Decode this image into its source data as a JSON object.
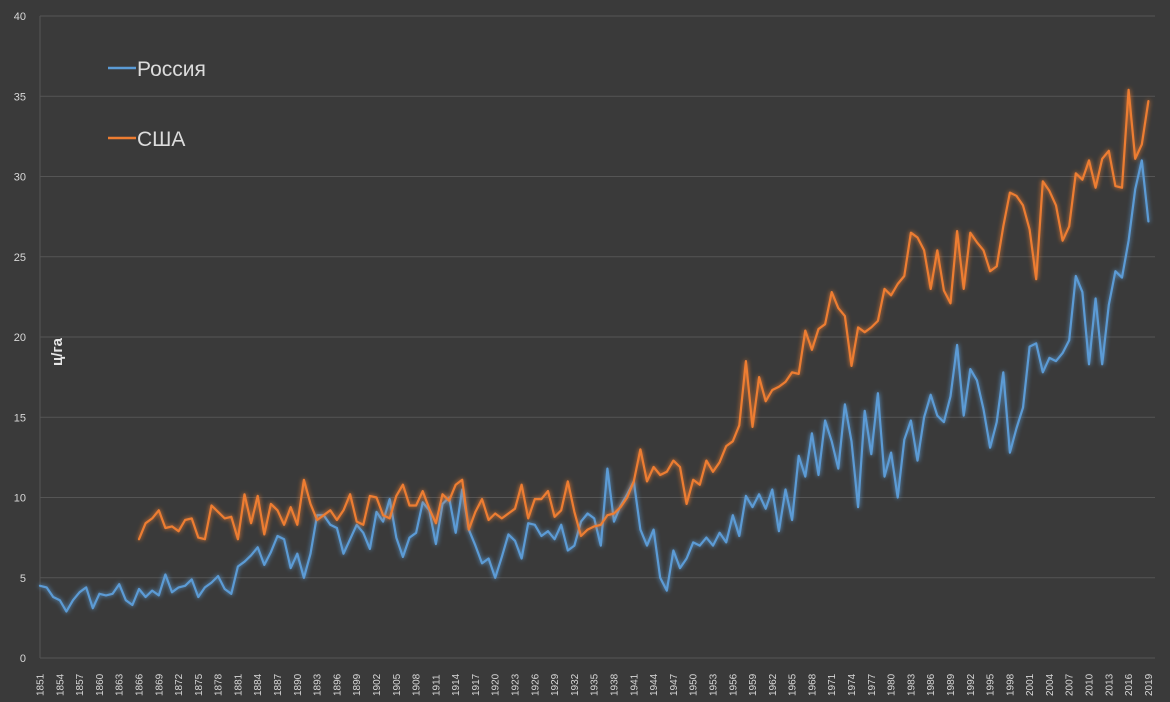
{
  "chart_data": {
    "type": "line",
    "ylabel": "ц/га",
    "xlabel": "",
    "title": "",
    "ylim": [
      0,
      40
    ],
    "yticks": [
      0,
      5,
      10,
      15,
      20,
      25,
      30,
      35,
      40
    ],
    "x_start": 1851,
    "x_end": 2020,
    "xtick_labels": [
      "1851",
      "1854",
      "1857",
      "1860",
      "1863",
      "1866",
      "1869",
      "1872",
      "1875",
      "1878",
      "1881",
      "1884",
      "1887",
      "1890",
      "1893",
      "1896",
      "1899",
      "1902",
      "1905",
      "1908",
      "1911",
      "1914",
      "1917",
      "1920",
      "1923",
      "1926",
      "1929",
      "1932",
      "1935",
      "1938",
      "1941",
      "1944",
      "1947",
      "1950",
      "1953",
      "1956",
      "1959",
      "1962",
      "1965",
      "1968",
      "1971",
      "1974",
      "1977",
      "1980",
      "1983",
      "1986",
      "1989",
      "1992",
      "1995",
      "1998",
      "2001",
      "2004",
      "2007",
      "2010",
      "2013",
      "2016",
      "2019"
    ],
    "grid": true,
    "legend_position": "top-left",
    "series": [
      {
        "name": "Россия",
        "color": "#5b9bd5",
        "start_year": 1851,
        "values": [
          4.5,
          4.4,
          3.8,
          3.6,
          2.9,
          3.6,
          4.1,
          4.4,
          3.1,
          4.0,
          3.9,
          4.0,
          4.6,
          3.6,
          3.3,
          4.3,
          3.8,
          4.2,
          3.9,
          5.2,
          4.1,
          4.4,
          4.5,
          4.9,
          3.8,
          4.4,
          4.7,
          5.1,
          4.3,
          4.0,
          5.7,
          6.0,
          6.4,
          6.9,
          5.8,
          6.6,
          7.6,
          7.4,
          5.6,
          6.5,
          5.0,
          6.5,
          8.9,
          8.9,
          8.3,
          8.1,
          6.5,
          7.4,
          8.3,
          7.8,
          6.8,
          9.1,
          8.5,
          9.9,
          7.5,
          6.3,
          7.5,
          7.8,
          9.7,
          9.2,
          7.1,
          9.6,
          10.0,
          7.8,
          10.5,
          8.0,
          7.0,
          5.9,
          6.2,
          5.0,
          6.3,
          7.7,
          7.3,
          6.2,
          8.4,
          8.3,
          7.6,
          7.9,
          7.4,
          8.3,
          6.7,
          7.0,
          8.5,
          9.0,
          8.7,
          7.0,
          11.8,
          8.5,
          9.5,
          10.2,
          11.0,
          8.0,
          7.0,
          8.0,
          5.0,
          4.2,
          6.7,
          5.6,
          6.2,
          7.2,
          7.0,
          7.5,
          7.0,
          7.8,
          7.2,
          8.9,
          7.6,
          10.1,
          9.4,
          10.2,
          9.3,
          10.5,
          7.9,
          10.5,
          8.6,
          12.6,
          11.3,
          14.0,
          11.4,
          14.8,
          13.5,
          11.8,
          15.8,
          13.5,
          9.4,
          15.4,
          12.7,
          16.5,
          11.3,
          12.8,
          10.0,
          13.6,
          14.8,
          12.3,
          15.0,
          16.4,
          15.1,
          14.7,
          16.3,
          19.5,
          15.1,
          18.0,
          17.3,
          15.5,
          13.1,
          14.7,
          17.8,
          12.8,
          14.3,
          15.6,
          19.4,
          19.6,
          17.8,
          18.7,
          18.5,
          19.0,
          19.8,
          23.8,
          22.8,
          18.3,
          22.4,
          18.3,
          22.0,
          24.1,
          23.7,
          26.0,
          29.2,
          31.0,
          27.2
        ]
      },
      {
        "name": "США",
        "color": "#ed7d31",
        "start_year": 1866,
        "values": [
          7.4,
          8.4,
          8.7,
          9.2,
          8.1,
          8.2,
          7.9,
          8.6,
          8.7,
          7.5,
          7.4,
          9.5,
          9.1,
          8.7,
          8.8,
          7.4,
          10.2,
          8.4,
          10.1,
          7.7,
          9.6,
          9.2,
          8.3,
          9.4,
          8.3,
          11.1,
          9.6,
          8.6,
          8.9,
          9.2,
          8.6,
          9.2,
          10.2,
          8.5,
          8.3,
          10.1,
          10.0,
          8.9,
          8.7,
          10.1,
          10.8,
          9.5,
          9.5,
          10.4,
          9.3,
          8.4,
          10.2,
          9.8,
          10.8,
          11.1,
          8.0,
          9.1,
          9.9,
          8.6,
          9.0,
          8.7,
          9.0,
          9.3,
          10.8,
          8.7,
          9.9,
          9.9,
          10.4,
          8.8,
          9.2,
          11.0,
          9.1,
          7.6,
          8.0,
          8.2,
          8.3,
          8.9,
          9.0,
          9.4,
          10.0,
          11.0,
          13.0,
          11.0,
          11.9,
          11.4,
          11.6,
          12.3,
          11.9,
          9.6,
          11.1,
          10.8,
          12.3,
          11.6,
          12.2,
          13.2,
          13.5,
          14.5,
          18.5,
          14.4,
          17.5,
          16.0,
          16.7,
          16.9,
          17.2,
          17.8,
          17.7,
          20.4,
          19.2,
          20.5,
          20.8,
          22.8,
          21.8,
          21.3,
          18.2,
          20.6,
          20.3,
          20.6,
          21.0,
          23.0,
          22.6,
          23.3,
          23.8,
          26.5,
          26.2,
          25.4,
          23.0,
          25.4,
          22.9,
          22.1,
          26.6,
          23.0,
          26.5,
          25.9,
          25.4,
          24.1,
          24.4,
          26.9,
          29.0,
          28.8,
          28.2,
          26.7,
          23.6,
          29.7,
          29.1,
          28.2,
          26.0,
          26.9,
          30.2,
          29.8,
          31.0,
          29.3,
          31.1,
          31.6,
          29.4,
          29.3,
          35.4,
          31.1,
          32.0,
          34.7
        ]
      }
    ]
  }
}
